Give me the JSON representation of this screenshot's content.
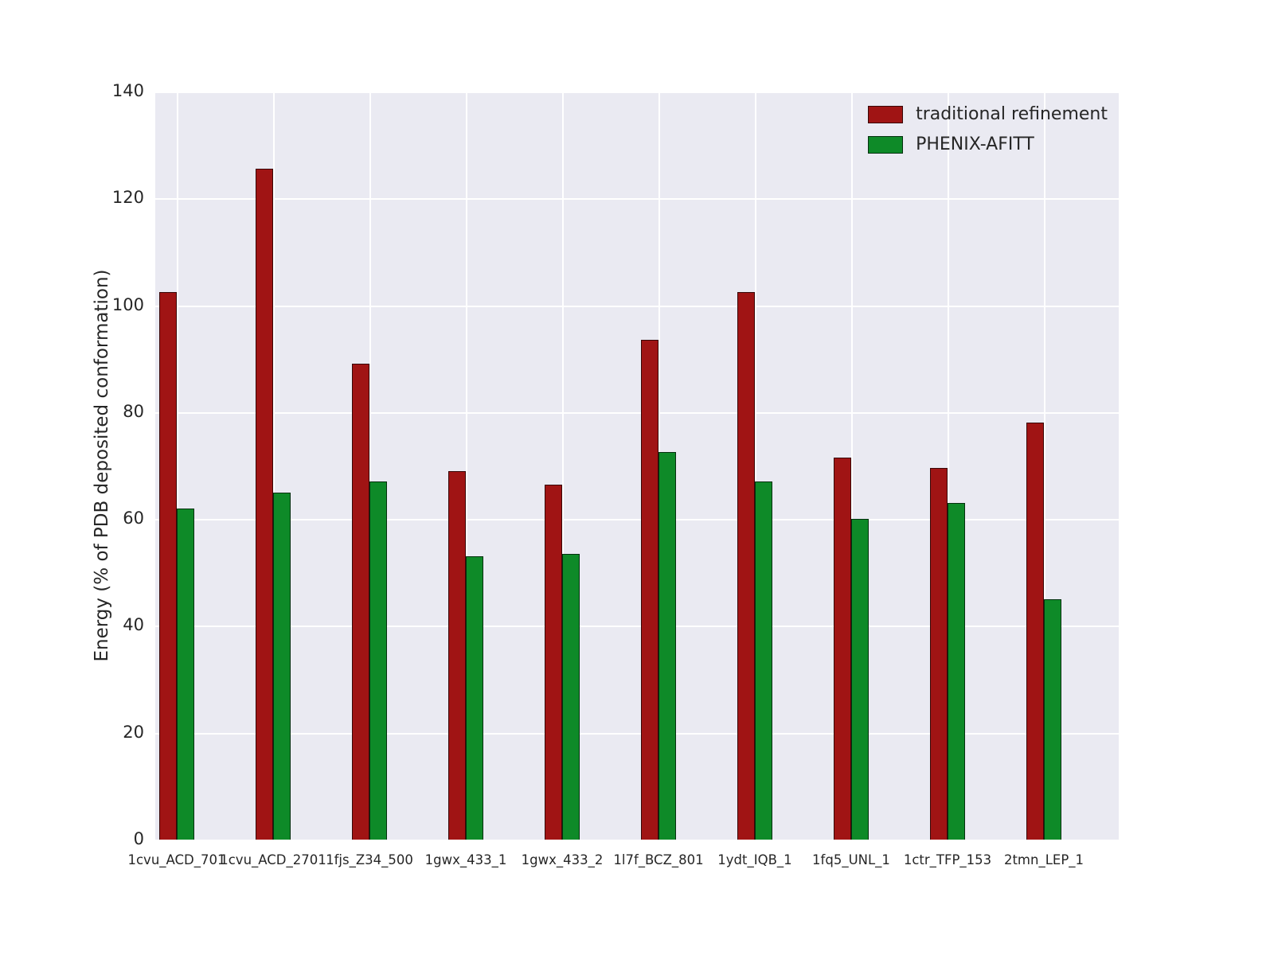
{
  "figure": {
    "background": "#ffffff",
    "plot_background": "#eaeaf2",
    "grid_color": "#ffffff",
    "text_color": "#262626"
  },
  "chart_data": {
    "type": "bar",
    "title": "",
    "xlabel": "",
    "ylabel": "Energy (% of PDB deposited conformation)",
    "ylim": [
      0,
      140
    ],
    "yticks": [
      0,
      20,
      40,
      60,
      80,
      100,
      120,
      140
    ],
    "grid": true,
    "legend_position": "upper right",
    "categories": [
      "1cvu_ACD_701",
      "1cvu_ACD_2701",
      "1fjs_Z34_500",
      "1gwx_433_1",
      "1gwx_433_2",
      "1l7f_BCZ_801",
      "1ydt_IQB_1",
      "1fq5_UNL_1",
      "1ctr_TFP_153",
      "2tmn_LEP_1"
    ],
    "series": [
      {
        "name": "traditional refinement",
        "color": "#a01414",
        "values": [
          102.5,
          125.5,
          89,
          69,
          66.5,
          93.5,
          102.5,
          71.5,
          69.5,
          78
        ]
      },
      {
        "name": "PHENIX-AFITT",
        "color": "#0e8a28",
        "values": [
          62,
          65,
          67,
          53,
          53.5,
          72.5,
          67,
          60,
          63,
          45
        ]
      }
    ]
  }
}
